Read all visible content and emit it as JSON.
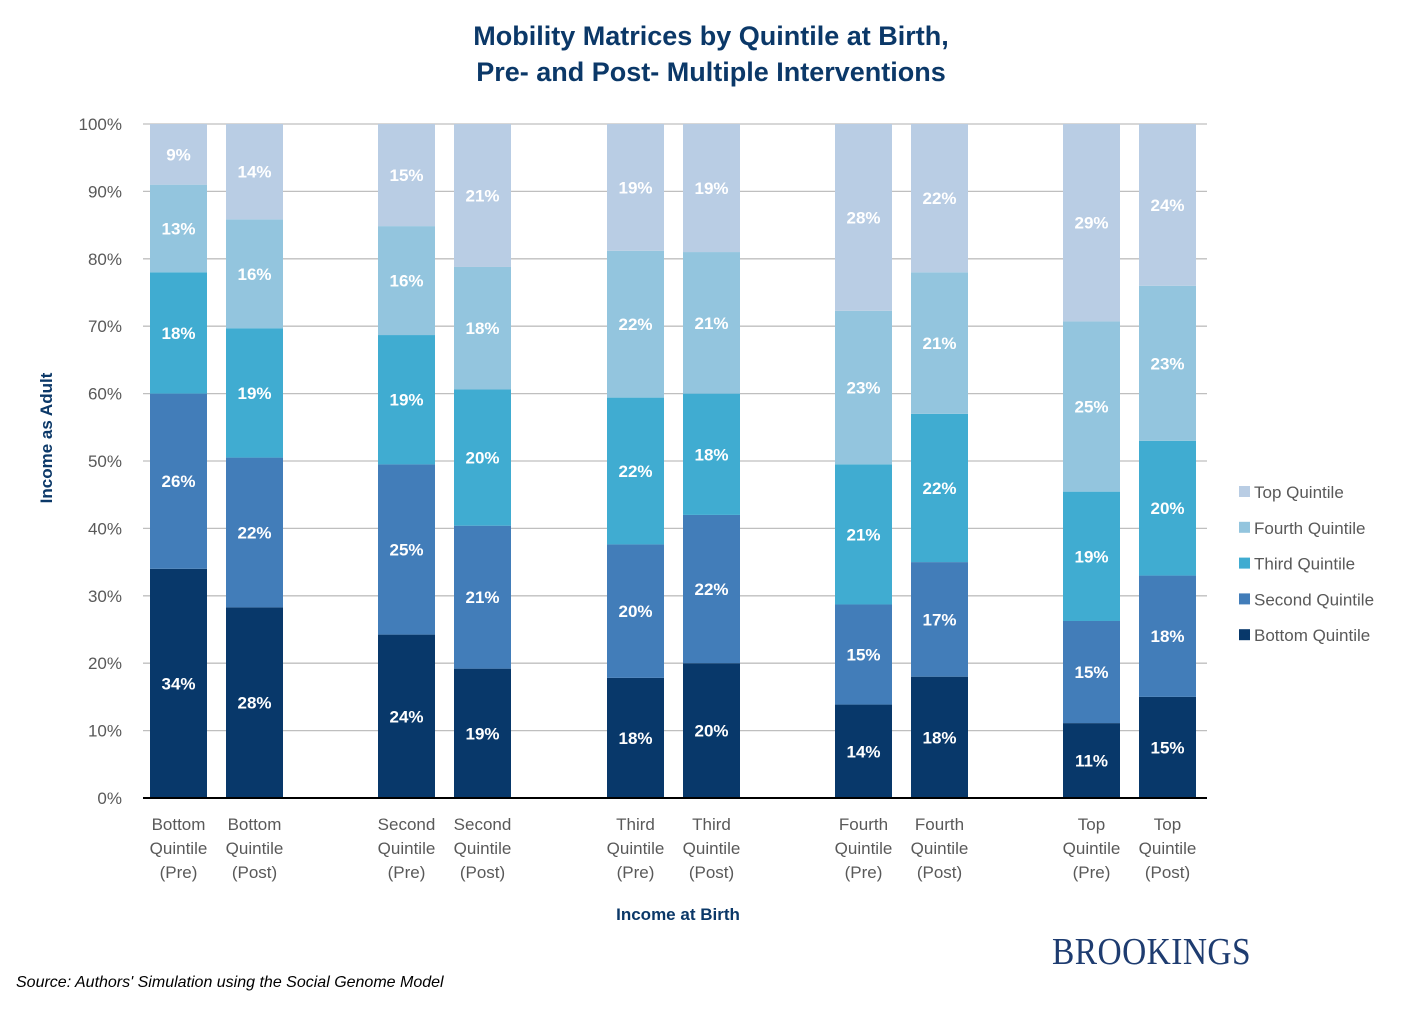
{
  "chart_data": {
    "type": "bar",
    "stacked": true,
    "title": "Mobility Matrices by Quintile at Birth, Pre- and Post- Multiple Interventions",
    "title_lines": [
      "Mobility Matrices by Quintile at Birth,",
      "Pre- and Post- Multiple Interventions"
    ],
    "xlabel": "Income at Birth",
    "ylabel": "Income as Adult",
    "ylim": [
      0,
      100
    ],
    "yticks": [
      "0%",
      "10%",
      "20%",
      "30%",
      "40%",
      "50%",
      "60%",
      "70%",
      "80%",
      "90%",
      "100%"
    ],
    "grid": true,
    "legend_position": "right",
    "groups": [
      {
        "categories": [
          [
            "Bottom",
            "Quintile",
            "(Pre)"
          ],
          [
            "Bottom",
            "Quintile",
            "(Post)"
          ]
        ]
      },
      {
        "categories": [
          [
            "Second",
            "Quintile",
            "(Pre)"
          ],
          [
            "Second",
            "Quintile",
            "(Post)"
          ]
        ]
      },
      {
        "categories": [
          [
            "Third",
            "Quintile",
            "(Pre)"
          ],
          [
            "Third",
            "Quintile",
            "(Post)"
          ]
        ]
      },
      {
        "categories": [
          [
            "Fourth",
            "Quintile",
            "(Pre)"
          ],
          [
            "Fourth",
            "Quintile",
            "(Post)"
          ]
        ]
      },
      {
        "categories": [
          [
            "Top",
            "Quintile",
            "(Pre)"
          ],
          [
            "Top",
            "Quintile",
            "(Post)"
          ]
        ]
      }
    ],
    "categories": [
      "Bottom Quintile (Pre)",
      "Bottom Quintile (Post)",
      "Second Quintile (Pre)",
      "Second Quintile (Post)",
      "Third Quintile (Pre)",
      "Third Quintile (Post)",
      "Fourth Quintile (Pre)",
      "Fourth Quintile (Post)",
      "Top Quintile (Pre)",
      "Top Quintile (Post)"
    ],
    "series": [
      {
        "name": "Bottom Quintile",
        "color": "#08386a",
        "values": [
          34,
          28,
          24,
          19,
          18,
          20,
          14,
          18,
          11,
          15
        ]
      },
      {
        "name": "Second Quintile",
        "color": "#427db9",
        "values": [
          26,
          22,
          25,
          21,
          20,
          22,
          15,
          17,
          15,
          18
        ]
      },
      {
        "name": "Third Quintile",
        "color": "#40acd1",
        "values": [
          18,
          19,
          19,
          20,
          22,
          18,
          21,
          22,
          19,
          20
        ]
      },
      {
        "name": "Fourth Quintile",
        "color": "#93c5de",
        "values": [
          13,
          16,
          16,
          18,
          22,
          21,
          23,
          21,
          25,
          23
        ]
      },
      {
        "name": "Top Quintile",
        "color": "#b9cde4",
        "values": [
          9,
          14,
          15,
          21,
          19,
          19,
          28,
          22,
          29,
          24
        ]
      }
    ],
    "legend_order": [
      "Top Quintile",
      "Fourth Quintile",
      "Third Quintile",
      "Second Quintile",
      "Bottom Quintile"
    ]
  },
  "footer": {
    "source": "Source: Authors' Simulation using the Social Genome Model",
    "brand": "BROOKINGS"
  }
}
